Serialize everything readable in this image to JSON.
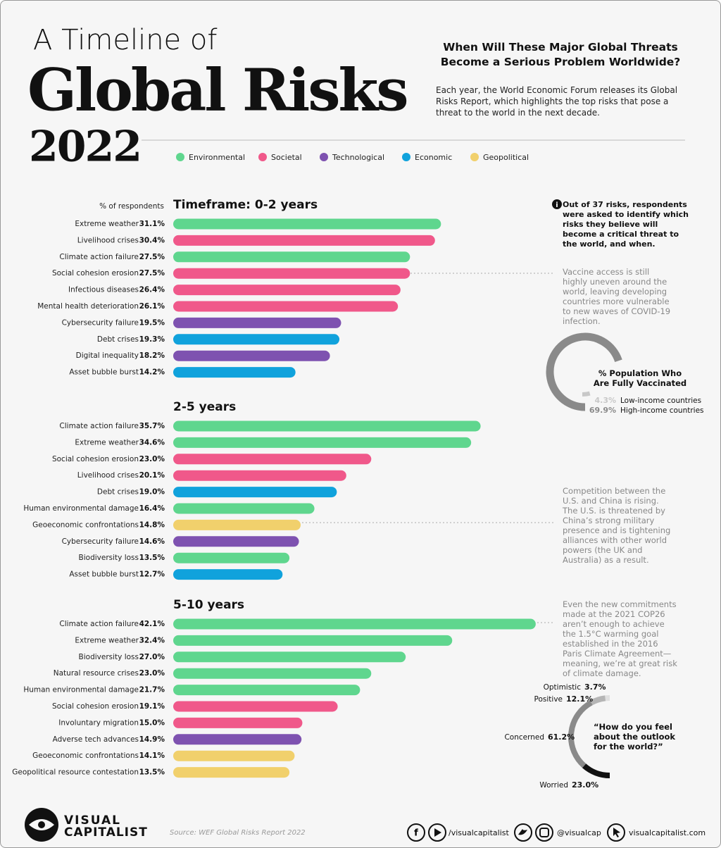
{
  "header": {
    "title_line1": "A Timeline of",
    "title_line2": "Global Risks",
    "year": "2022",
    "question": "When Will These Major Global Threats Become a Serious Problem Worldwide?",
    "intro": "Each year, the World Economic Forum releases its Global Risks Report, which highlights the top risks that pose a threat to the world in the next decade."
  },
  "legend": [
    {
      "name": "Environmental",
      "color": "#5fd68e"
    },
    {
      "name": "Societal",
      "color": "#f0588a"
    },
    {
      "name": "Technological",
      "color": "#7e52b0"
    },
    {
      "name": "Economic",
      "color": "#10a2dc"
    },
    {
      "name": "Geopolitical",
      "color": "#f1d06c"
    }
  ],
  "axis_label": "% of respondents",
  "chart_data": [
    {
      "type": "hbar",
      "title": "Timeframe: 0-2 years",
      "categories": [
        "Extreme weather",
        "Livelihood crises",
        "Climate action failure",
        "Social cohesion erosion",
        "Infectious diseases",
        "Mental health deterioration",
        "Cybersecurity failure",
        "Debt crises",
        "Digital inequality",
        "Asset bubble burst"
      ],
      "values": [
        31.1,
        30.4,
        27.5,
        27.5,
        26.4,
        26.1,
        19.5,
        19.3,
        18.2,
        14.2
      ],
      "value_labels": [
        "31.1%",
        "30.4%",
        "27.5%",
        "27.5%",
        "26.4%",
        "26.1%",
        "19.5%",
        "19.3%",
        "18.2%",
        "14.2%"
      ],
      "colors": [
        "#5fd68e",
        "#f0588a",
        "#5fd68e",
        "#f0588a",
        "#f0588a",
        "#f0588a",
        "#7e52b0",
        "#10a2dc",
        "#7e52b0",
        "#10a2dc"
      ]
    },
    {
      "type": "hbar",
      "title": "2-5 years",
      "categories": [
        "Climate action failure",
        "Extreme weather",
        "Social cohesion erosion",
        "Livelihood crises",
        "Debt crises",
        "Human environmental damage",
        "Geoeconomic confrontations",
        "Cybersecurity failure",
        "Biodiversity loss",
        "Asset bubble burst"
      ],
      "values": [
        35.7,
        34.6,
        23,
        20.1,
        19,
        16.4,
        14.8,
        14.6,
        13.5,
        12.7
      ],
      "value_labels": [
        "35.7%",
        "34.6%",
        "23.0%",
        "20.1%",
        "19.0%",
        "16.4%",
        "14.8%",
        "14.6%",
        "13.5%",
        "12.7%"
      ],
      "colors": [
        "#5fd68e",
        "#5fd68e",
        "#f0588a",
        "#f0588a",
        "#10a2dc",
        "#5fd68e",
        "#f1d06c",
        "#7e52b0",
        "#5fd68e",
        "#10a2dc"
      ]
    },
    {
      "type": "hbar",
      "title": "5-10 years",
      "categories": [
        "Climate action failure",
        "Extreme weather",
        "Biodiversity loss",
        "Natural resource crises",
        "Human environmental damage",
        "Social cohesion erosion",
        "Involuntary migration",
        "Adverse tech advances",
        "Geoeconomic confrontations",
        "Geopolitical resource contestation"
      ],
      "values": [
        42.1,
        32.4,
        27,
        23,
        21.7,
        19.1,
        15,
        14.9,
        14.1,
        13.5
      ],
      "value_labels": [
        "42.1%",
        "32.4%",
        "27.0%",
        "23.0%",
        "21.7%",
        "19.1%",
        "15.0%",
        "14.9%",
        "14.1%",
        "13.5%"
      ],
      "colors": [
        "#5fd68e",
        "#5fd68e",
        "#5fd68e",
        "#5fd68e",
        "#5fd68e",
        "#f0588a",
        "#f0588a",
        "#7e52b0",
        "#f1d06c",
        "#f1d06c"
      ]
    },
    {
      "type": "ring",
      "title": "% Population Who Are Fully Vaccinated",
      "categories": [
        "Low-income countries",
        "High-income countries"
      ],
      "values": [
        4.3,
        69.9
      ],
      "value_labels": [
        "4.3%",
        "69.9%"
      ],
      "colors": [
        "#c8c8c8",
        "#8a8a8a"
      ]
    },
    {
      "type": "halfring",
      "title": "“How do you feel about the outlook for the world?”",
      "categories": [
        "Optimistic",
        "Positive",
        "Concerned",
        "Worried"
      ],
      "values": [
        3.7,
        12.1,
        61.2,
        23
      ],
      "value_labels": [
        "3.7%",
        "12.1%",
        "61.2%",
        "23.0%"
      ],
      "colors": [
        "#e0e0e0",
        "#b5b5b5",
        "#8a8a8a",
        "#111111"
      ]
    }
  ],
  "notes": {
    "info": "Out of 37 risks, respondents were asked to identify which risks they believe will become a critical threat to the world, and when.",
    "vaccine": "Vaccine access is still highly uneven around the world, leaving developing countries more vulnerable to new waves of COVID-19 infection.",
    "competition": "Competition between the U.S. and China is rising. The U.S. is threatened by China’s strong military presence and is tightening alliances with other world powers (the UK and Australia) as a result.",
    "climate": "Even the new commitments made at the 2021 COP26 aren’t enough to achieve the 1.5°C warming goal established in the 2016 Paris Climate Agreement—meaning, we’re at great risk of climate damage."
  },
  "footer": {
    "brand_line1": "VISUAL",
    "brand_line2": "CAPITALIST",
    "source": "Source: WEF Global Risks Report 2022",
    "youtube": "/visualcapitalist",
    "handle": "@visualcap",
    "site": "visualcapitalist.com"
  }
}
